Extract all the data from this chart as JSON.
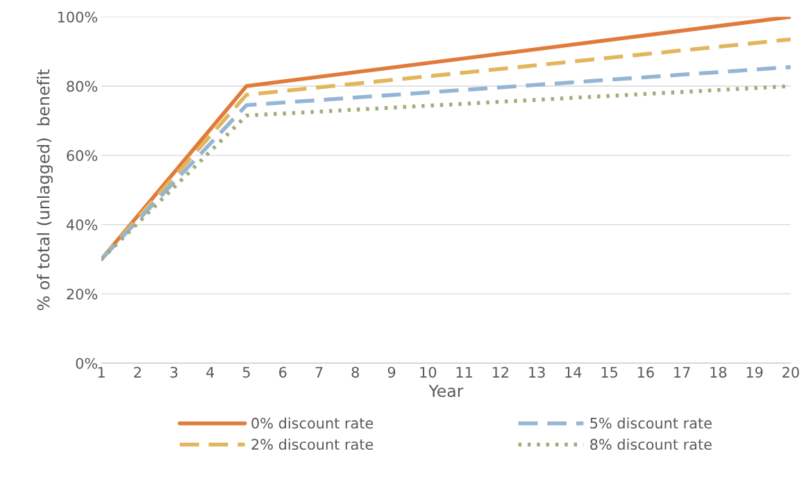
{
  "chart_data": {
    "type": "line",
    "xlabel": "Year",
    "ylabel": "% of total (unlagged)  benefit",
    "x": [
      1,
      5,
      20
    ],
    "series": [
      {
        "name": "0% discount rate",
        "color": "#e07b3c",
        "line_style": "solid",
        "values": [
          30,
          80,
          100
        ]
      },
      {
        "name": "2% discount rate",
        "color": "#e2b65c",
        "line_style": "dashed",
        "values": [
          30,
          77.5,
          93.5
        ]
      },
      {
        "name": "5% discount rate",
        "color": "#95b5d6",
        "line_style": "dashed",
        "values": [
          30,
          74.5,
          85.5
        ]
      },
      {
        "name": "8% discount rate",
        "color": "#a3ac78",
        "line_style": "dotted",
        "values": [
          30,
          71.5,
          80
        ]
      }
    ],
    "xlim": [
      1,
      20
    ],
    "xticks": [
      1,
      2,
      3,
      4,
      5,
      6,
      7,
      8,
      9,
      10,
      11,
      12,
      13,
      14,
      15,
      16,
      17,
      18,
      19,
      20
    ],
    "ylim": [
      0,
      100
    ],
    "yticks": [
      {
        "value": 0,
        "label": "0%"
      },
      {
        "value": 20,
        "label": "20%"
      },
      {
        "value": 40,
        "label": "40%"
      },
      {
        "value": 60,
        "label": "60%"
      },
      {
        "value": 80,
        "label": "80%"
      },
      {
        "value": 100,
        "label": "100%"
      }
    ],
    "grid": "y",
    "legend": "bottom",
    "marker": "none"
  }
}
